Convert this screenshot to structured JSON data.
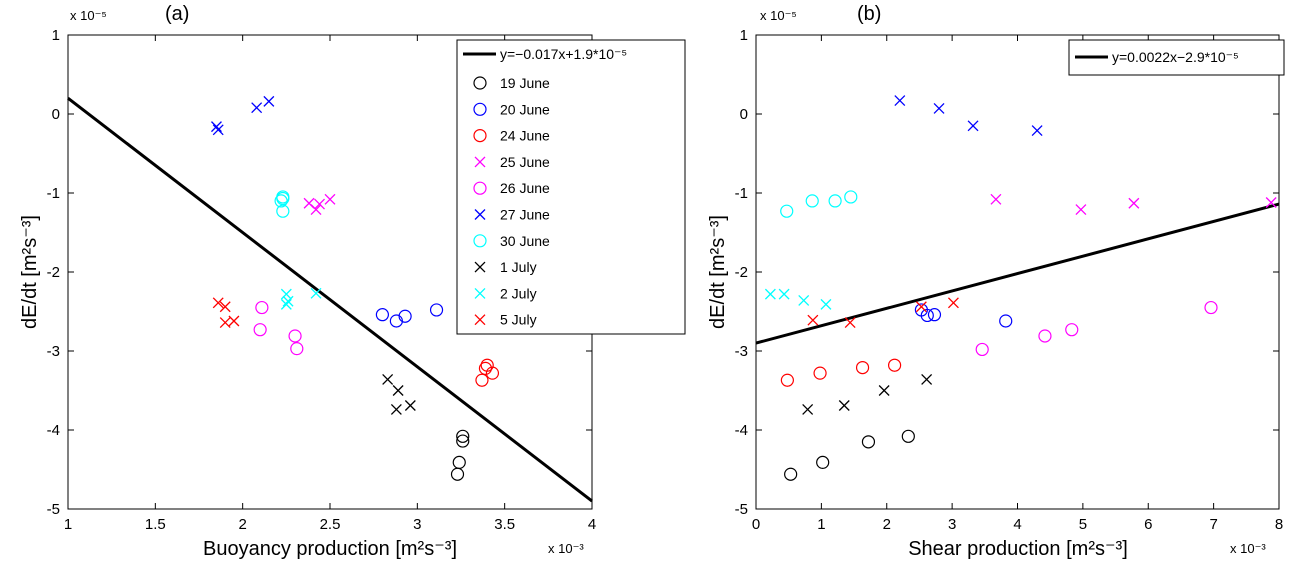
{
  "chart_data": [
    {
      "type": "scatter",
      "panel_label": "(a)",
      "xlabel": "Buoyancy production",
      "xlabel_unit": "[m²s⁻³]",
      "ylabel": "dE/dt",
      "ylabel_unit": "[m²s⁻³]",
      "x_multiplier": "x 10⁻³",
      "y_multiplier": "x 10⁻⁵",
      "xlim": [
        1,
        4
      ],
      "ylim": [
        -5,
        1
      ],
      "xticks": [
        "1",
        "1.5",
        "2",
        "2.5",
        "3",
        "3.5",
        "4"
      ],
      "yticks": [
        "1",
        "0",
        "-1",
        "-2",
        "-3",
        "-4",
        "-5"
      ],
      "grid": false,
      "legend_position": "top-right",
      "fit_line": {
        "label": "y=−0.017x+1.9*10⁻⁵",
        "points": [
          [
            1.0,
            0.2
          ],
          [
            4.0,
            -4.9
          ]
        ],
        "color": "#000000"
      },
      "series": [
        {
          "name": "19 June",
          "marker": "circle",
          "color": "#000000",
          "points": [
            [
              3.26,
              -4.08
            ],
            [
              3.26,
              -4.14
            ],
            [
              3.24,
              -4.41
            ],
            [
              3.23,
              -4.56
            ]
          ]
        },
        {
          "name": "20 June",
          "marker": "circle",
          "color": "#0000FF",
          "points": [
            [
              2.8,
              -2.54
            ],
            [
              2.88,
              -2.62
            ],
            [
              2.93,
              -2.56
            ],
            [
              3.11,
              -2.48
            ]
          ]
        },
        {
          "name": "24 June",
          "marker": "circle",
          "color": "#FF0000",
          "points": [
            [
              3.4,
              -3.18
            ],
            [
              3.39,
              -3.22
            ],
            [
              3.37,
              -3.37
            ],
            [
              3.43,
              -3.28
            ]
          ]
        },
        {
          "name": "25 June",
          "marker": "x",
          "color": "#FF00FF",
          "points": [
            [
              2.38,
              -1.13
            ],
            [
              2.42,
              -1.21
            ],
            [
              2.44,
              -1.14
            ],
            [
              2.5,
              -1.08
            ]
          ]
        },
        {
          "name": "26 June",
          "marker": "circle",
          "color": "#FF00FF",
          "points": [
            [
              2.11,
              -2.45
            ],
            [
              2.1,
              -2.73
            ],
            [
              2.3,
              -2.81
            ],
            [
              2.31,
              -2.97
            ]
          ]
        },
        {
          "name": "27 June",
          "marker": "x",
          "color": "#0000FF",
          "points": [
            [
              1.85,
              -0.16
            ],
            [
              1.86,
              -0.2
            ],
            [
              2.08,
              0.08
            ],
            [
              2.15,
              0.16
            ]
          ]
        },
        {
          "name": "30 June",
          "marker": "circle",
          "color": "#00FFFF",
          "points": [
            [
              2.22,
              -1.1
            ],
            [
              2.23,
              -1.07
            ],
            [
              2.23,
              -1.05
            ],
            [
              2.23,
              -1.23
            ]
          ]
        },
        {
          "name": "1 July",
          "marker": "x",
          "color": "#000000",
          "points": [
            [
              2.83,
              -3.36
            ],
            [
              2.89,
              -3.5
            ],
            [
              2.88,
              -3.74
            ],
            [
              2.96,
              -3.69
            ]
          ]
        },
        {
          "name": "2 July",
          "marker": "x",
          "color": "#00FFFF",
          "points": [
            [
              2.25,
              -2.28
            ],
            [
              2.26,
              -2.37
            ],
            [
              2.25,
              -2.41
            ],
            [
              2.42,
              -2.27
            ]
          ]
        },
        {
          "name": "5 July",
          "marker": "x",
          "color": "#FF0000",
          "points": [
            [
              1.86,
              -2.39
            ],
            [
              1.9,
              -2.44
            ],
            [
              1.9,
              -2.64
            ],
            [
              1.95,
              -2.62
            ]
          ]
        }
      ]
    },
    {
      "type": "scatter",
      "panel_label": "(b)",
      "xlabel": "Shear production",
      "xlabel_unit": "[m²s⁻³]",
      "ylabel": "dE/dt",
      "ylabel_unit": "[m²s⁻³]",
      "x_multiplier": "x 10⁻³",
      "y_multiplier": "x 10⁻⁵",
      "xlim": [
        0,
        8
      ],
      "ylim": [
        -5,
        1
      ],
      "xticks": [
        "0",
        "1",
        "2",
        "3",
        "4",
        "5",
        "6",
        "7",
        "8"
      ],
      "yticks": [
        "1",
        "0",
        "-1",
        "-2",
        "-3",
        "-4",
        "-5"
      ],
      "grid": false,
      "legend_position": "top-right",
      "fit_line": {
        "label": "y=0.0022x−2.9*10⁻⁵",
        "points": [
          [
            0.0,
            -2.9
          ],
          [
            8.0,
            -1.14
          ]
        ],
        "color": "#000000"
      },
      "series": [
        {
          "name": "19 June",
          "marker": "circle",
          "color": "#000000",
          "points": [
            [
              0.53,
              -4.56
            ],
            [
              1.02,
              -4.41
            ],
            [
              1.72,
              -4.15
            ],
            [
              2.33,
              -4.08
            ]
          ]
        },
        {
          "name": "20 June",
          "marker": "circle",
          "color": "#0000FF",
          "points": [
            [
              2.53,
              -2.48
            ],
            [
              2.62,
              -2.55
            ],
            [
              2.73,
              -2.54
            ],
            [
              3.82,
              -2.62
            ]
          ]
        },
        {
          "name": "24 June",
          "marker": "circle",
          "color": "#FF0000",
          "points": [
            [
              0.48,
              -3.37
            ],
            [
              0.98,
              -3.28
            ],
            [
              1.63,
              -3.21
            ],
            [
              2.12,
              -3.18
            ]
          ]
        },
        {
          "name": "25 June",
          "marker": "x",
          "color": "#FF00FF",
          "points": [
            [
              3.67,
              -1.08
            ],
            [
              4.97,
              -1.21
            ],
            [
              5.78,
              -1.13
            ],
            [
              7.88,
              -1.12
            ]
          ]
        },
        {
          "name": "26 June",
          "marker": "circle",
          "color": "#FF00FF",
          "points": [
            [
              3.46,
              -2.98
            ],
            [
              4.42,
              -2.81
            ],
            [
              4.83,
              -2.73
            ],
            [
              6.96,
              -2.45
            ]
          ]
        },
        {
          "name": "27 June",
          "marker": "x",
          "color": "#0000FF",
          "points": [
            [
              2.2,
              0.17
            ],
            [
              2.8,
              0.07
            ],
            [
              3.32,
              -0.15
            ],
            [
              4.3,
              -0.21
            ]
          ]
        },
        {
          "name": "30 June",
          "marker": "circle",
          "color": "#00FFFF",
          "points": [
            [
              0.47,
              -1.23
            ],
            [
              0.86,
              -1.1
            ],
            [
              1.21,
              -1.1
            ],
            [
              1.45,
              -1.05
            ]
          ]
        },
        {
          "name": "1 July",
          "marker": "x",
          "color": "#000000",
          "points": [
            [
              0.79,
              -3.74
            ],
            [
              1.35,
              -3.69
            ],
            [
              1.96,
              -3.5
            ],
            [
              2.61,
              -3.36
            ]
          ]
        },
        {
          "name": "2 July",
          "marker": "x",
          "color": "#00FFFF",
          "points": [
            [
              0.22,
              -2.28
            ],
            [
              0.43,
              -2.28
            ],
            [
              0.73,
              -2.36
            ],
            [
              1.07,
              -2.41
            ]
          ]
        },
        {
          "name": "5 July",
          "marker": "x",
          "color": "#FF0000",
          "points": [
            [
              0.87,
              -2.61
            ],
            [
              1.44,
              -2.64
            ],
            [
              2.53,
              -2.44
            ],
            [
              3.02,
              -2.39
            ]
          ]
        }
      ]
    }
  ]
}
